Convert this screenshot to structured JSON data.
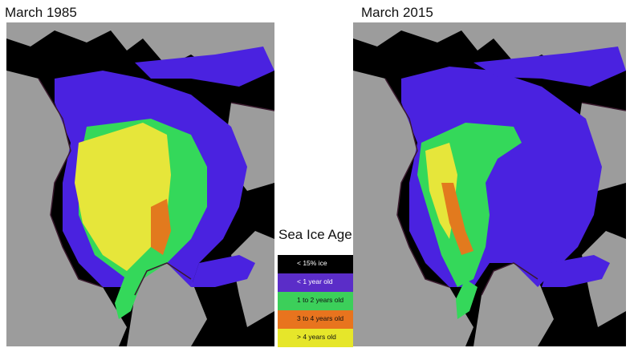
{
  "panels": [
    {
      "title": "March 1985"
    },
    {
      "title": "March 2015"
    }
  ],
  "legend": {
    "title": "Sea Ice Age",
    "items": [
      {
        "label": "< 15% ice",
        "color": "#000000"
      },
      {
        "label": "< 1 year old",
        "color": "#5b2dc8"
      },
      {
        "label": "1 to 2 years old",
        "color": "#3ccf5a"
      },
      {
        "label": "3 to 4 years old",
        "color": "#e8741e"
      },
      {
        "label": "> 4 years old",
        "color": "#e6e62a"
      }
    ]
  },
  "colors": {
    "land": "#9c9c9c",
    "ocean_open": "#000000",
    "first_year": "#4a22e0",
    "second_year": "#34d85a",
    "three_four": "#e27a1e",
    "multi_year": "#e6e63a",
    "coast": "#3a1a2e"
  }
}
